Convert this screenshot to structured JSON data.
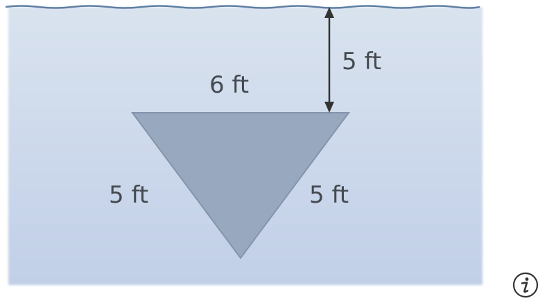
{
  "diagram": {
    "depth_label": "5 ft",
    "top_side_label": "6 ft",
    "left_side_label": "5 ft",
    "right_side_label": "5 ft"
  },
  "colors": {
    "water_top": "#d6e0ee",
    "water_bottom": "#c3d0e8",
    "surface_line": "#5f7fa3",
    "plate_fill": "#98a9c0",
    "plate_stroke": "#7f90a8",
    "arrow": "#333333",
    "label_text": "#444a50"
  },
  "icons": {
    "info": "info-icon"
  }
}
